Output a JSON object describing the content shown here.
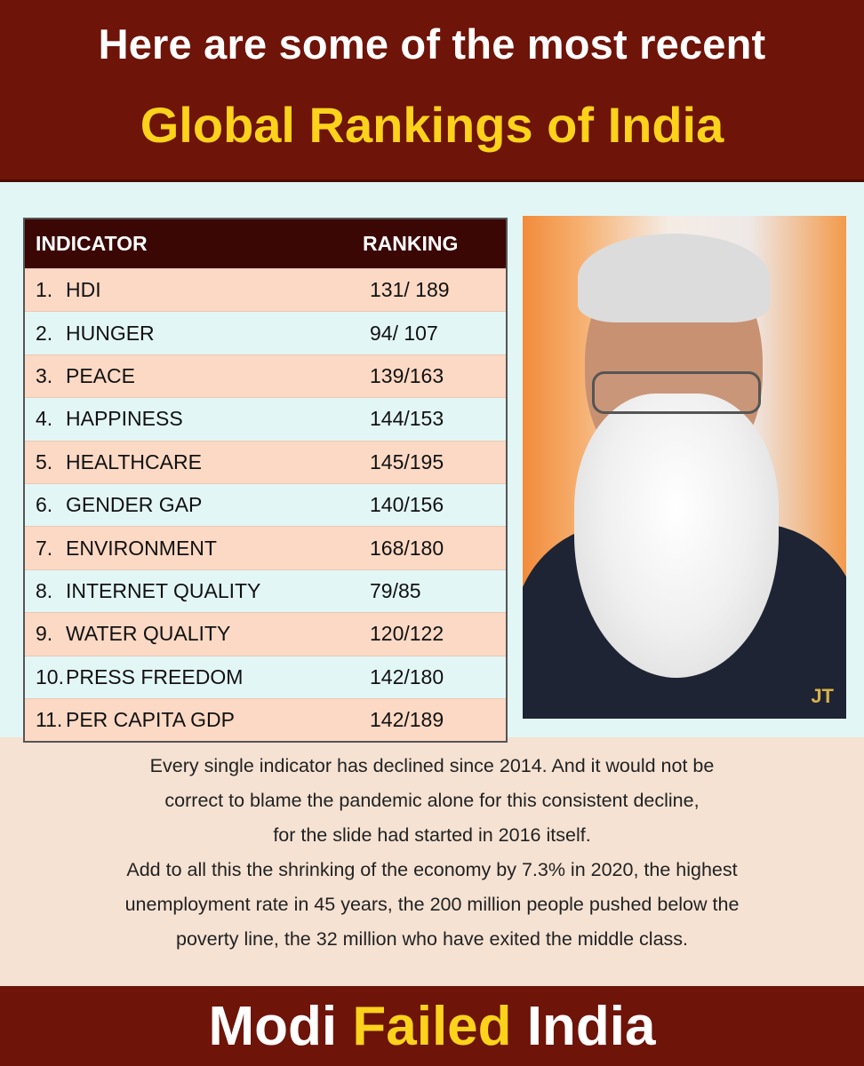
{
  "header": {
    "line1": "Here are some of the most recent",
    "line2": "Global Rankings of India"
  },
  "table": {
    "col_indicator": "INDICATOR",
    "col_ranking": "RANKING",
    "rows": [
      {
        "num": "1.",
        "name": "HDI",
        "rank": "131/ 189"
      },
      {
        "num": "2.",
        "name": "HUNGER",
        "rank": "94/ 107"
      },
      {
        "num": "3.",
        "name": "PEACE",
        "rank": "139/163"
      },
      {
        "num": "4.",
        "name": "HAPPINESS",
        "rank": "144/153"
      },
      {
        "num": "5.",
        "name": "HEALTHCARE",
        "rank": "145/195"
      },
      {
        "num": "6.",
        "name": "GENDER GAP",
        "rank": "140/156"
      },
      {
        "num": "7.",
        "name": "ENVIRONMENT",
        "rank": "168/180"
      },
      {
        "num": "8.",
        "name": "INTERNET QUALITY",
        "rank": "79/85"
      },
      {
        "num": "9.",
        "name": "WATER QUALITY",
        "rank": "120/122"
      },
      {
        "num": "10.",
        "name": "PRESS FREEDOM",
        "rank": "142/180"
      },
      {
        "num": "11.",
        "name": "PER CAPITA GDP",
        "rank": "142/189"
      }
    ]
  },
  "photo": {
    "watermark": "JT"
  },
  "paragraph": {
    "line1": "Every single indicator has declined since 2014. And it would not be",
    "line2": "correct to blame the pandemic alone for this consistent decline,",
    "line3": "for the slide had started in 2016 itself.",
    "line4": "Add to all this the shrinking of the economy by 7.3% in 2020, the highest",
    "line5": "unemployment rate in 45 years, the 200 million people pushed below the",
    "line6": "poverty line, the 32 million who have exited the middle class."
  },
  "footer": {
    "word1": "Modi",
    "word2": "Failed",
    "word3": "India"
  },
  "colors": {
    "banner": "#6e1409",
    "accent_yellow": "#fcd21a",
    "row_peach": "#fcd9c4",
    "row_mint": "#e3f6f6"
  }
}
